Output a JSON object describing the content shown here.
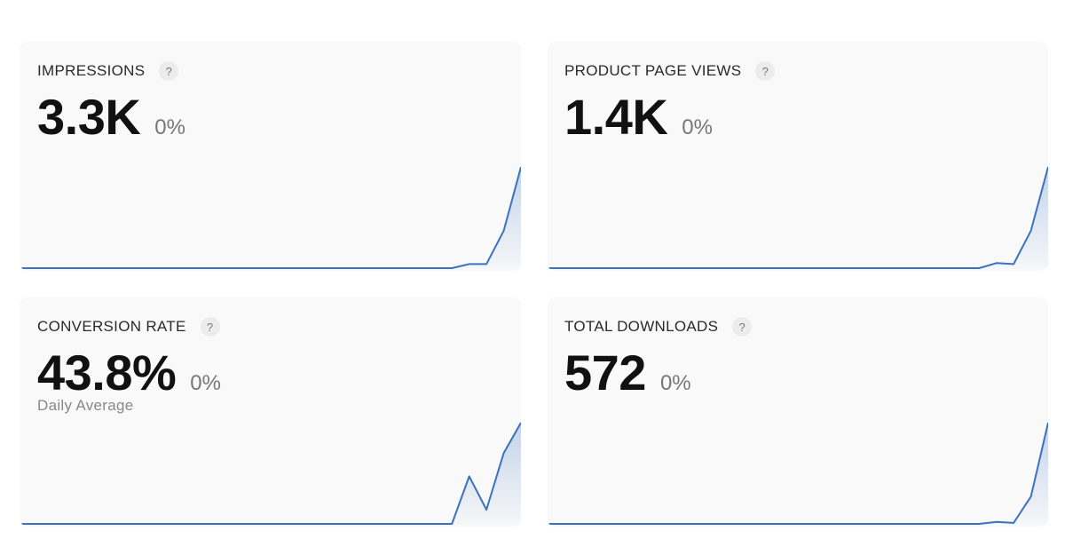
{
  "cards": [
    {
      "title": "IMPRESSIONS",
      "help": "?",
      "value": "3.3K",
      "change": "0%",
      "chart": {
        "type": "line",
        "color": "#3a72c0",
        "ylim": [
          0,
          100
        ],
        "values": [
          0,
          0,
          0,
          0,
          0,
          0,
          0,
          0,
          0,
          0,
          0,
          0,
          0,
          0,
          0,
          0,
          0,
          0,
          0,
          0,
          0,
          0,
          0,
          0,
          0,
          0,
          4,
          4,
          37,
          100
        ]
      }
    },
    {
      "title": "PRODUCT PAGE VIEWS",
      "help": "?",
      "value": "1.4K",
      "change": "0%",
      "chart": {
        "type": "line",
        "color": "#3a72c0",
        "ylim": [
          0,
          100
        ],
        "values": [
          0,
          0,
          0,
          0,
          0,
          0,
          0,
          0,
          0,
          0,
          0,
          0,
          0,
          0,
          0,
          0,
          0,
          0,
          0,
          0,
          0,
          0,
          0,
          0,
          0,
          0,
          5,
          4,
          37,
          100
        ]
      }
    },
    {
      "title": "CONVERSION RATE",
      "help": "?",
      "value": "43.8%",
      "change": "0%",
      "subtitle": "Daily Average",
      "chart": {
        "type": "line",
        "color": "#3a72c0",
        "ylim": [
          0,
          100
        ],
        "values": [
          0,
          0,
          0,
          0,
          0,
          0,
          0,
          0,
          0,
          0,
          0,
          0,
          0,
          0,
          0,
          0,
          0,
          0,
          0,
          0,
          0,
          0,
          0,
          0,
          0,
          0,
          47,
          14,
          70,
          100
        ]
      }
    },
    {
      "title": "TOTAL DOWNLOADS",
      "help": "?",
      "value": "572",
      "change": "0%",
      "chart": {
        "type": "line",
        "color": "#3a72c0",
        "ylim": [
          0,
          100
        ],
        "values": [
          0,
          0,
          0,
          0,
          0,
          0,
          0,
          0,
          0,
          0,
          0,
          0,
          0,
          0,
          0,
          0,
          0,
          0,
          0,
          0,
          0,
          0,
          0,
          0,
          0,
          0,
          2,
          1,
          27,
          100
        ]
      }
    }
  ]
}
